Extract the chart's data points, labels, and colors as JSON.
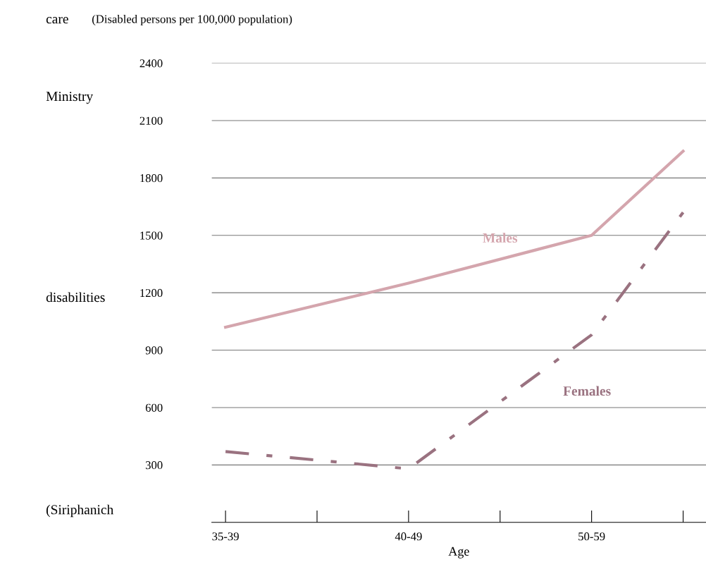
{
  "chart_data": {
    "type": "line",
    "subtitle": "(Disabled persons per 100,000 population)",
    "xlabel": "Age",
    "categories": [
      "35-39",
      null,
      "40-49",
      null,
      "50-59",
      null
    ],
    "series": [
      {
        "name": "Males",
        "color": "#d4a5ad",
        "line_style": "solid",
        "values": [
          1020,
          null,
          1250,
          null,
          1500,
          1940
        ]
      },
      {
        "name": "Females",
        "color": "#9a7280",
        "line_style": "dashed",
        "values": [
          370,
          null,
          280,
          null,
          980,
          1620
        ]
      }
    ],
    "ylim": [
      0,
      2400
    ],
    "yticks": [
      300,
      600,
      900,
      1200,
      1500,
      1800,
      2100,
      2400
    ],
    "grid": "y",
    "marker": "none",
    "annotations": [
      "care",
      "Ministry",
      "disabilities",
      "(Siriphanich"
    ]
  }
}
